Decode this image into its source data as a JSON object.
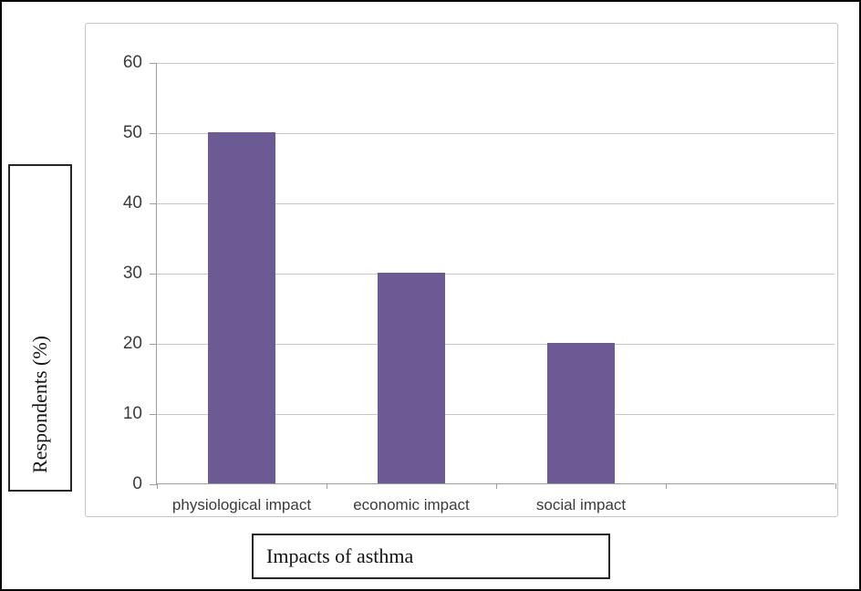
{
  "frame": {
    "background": "#ffffff",
    "outer_border_color": "#000000",
    "chart_frame_border_color": "#c6c6c6"
  },
  "chart_data": {
    "type": "bar",
    "title": "",
    "categories": [
      "physiological impact",
      "economic impact",
      "social impact"
    ],
    "values": [
      50,
      30,
      20
    ],
    "series": [
      {
        "name": "Respondents (%)",
        "values": [
          50,
          30,
          20
        ]
      }
    ],
    "xlabel": "Impacts of asthma",
    "ylabel": "Respondents (%)",
    "ylim": [
      0,
      60
    ],
    "ytick_step": 10,
    "ytick_labels": [
      "0",
      "10",
      "20",
      "30",
      "40",
      "50",
      "60"
    ],
    "category_slots": 4,
    "grid": true,
    "legend_position": "none",
    "bar_color": "#6c5a94",
    "gridline_color": "#c6c6c6",
    "axis_line_color": "#9d9d9d",
    "tick_label_color": "#3b3b3b",
    "bar_width_ratio": 0.4
  }
}
